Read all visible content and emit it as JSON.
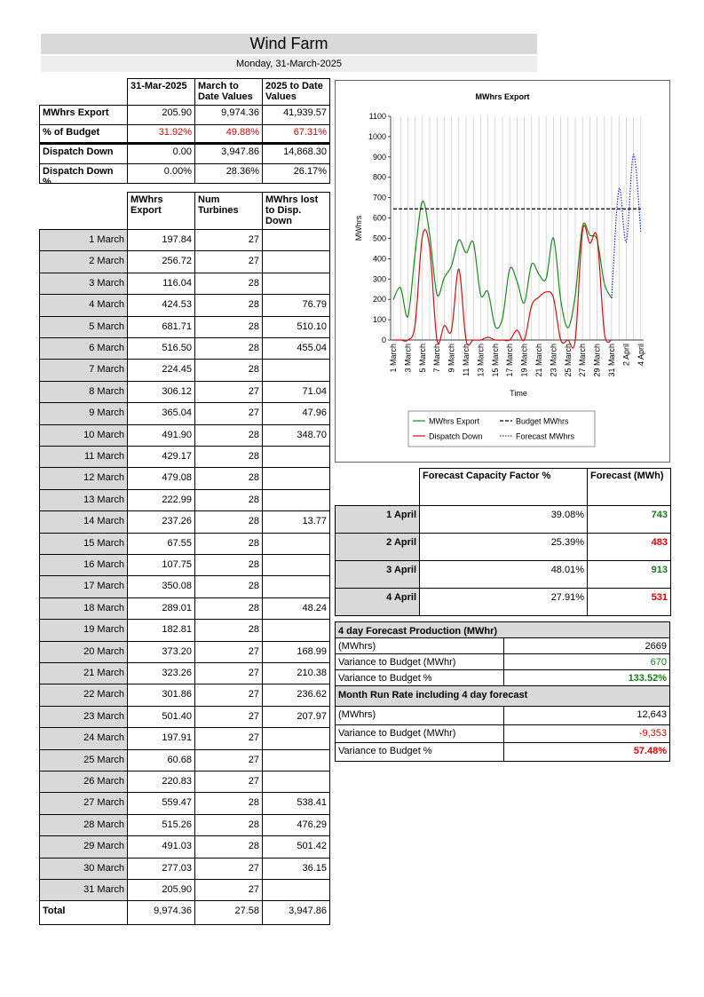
{
  "header": {
    "title": "Wind Farm",
    "date": "Monday, 31-March-2025"
  },
  "summary": {
    "columns": [
      "31-Mar-2025",
      "March to Date Values",
      "2025 to Date Values"
    ],
    "rows": [
      {
        "label": "MWhrs Export",
        "values": [
          "205.90",
          "9,974.36",
          "41,939.57"
        ],
        "color": "#000000"
      },
      {
        "label": "% of Budget",
        "values": [
          "31.92%",
          "49.88%",
          "67.31%"
        ],
        "color": "#e00000"
      },
      {
        "label": "Dispatch Down",
        "values": [
          "0.00",
          "3,947.86",
          "14,868.30"
        ],
        "color": "#000000"
      },
      {
        "label": "Dispatch Down %",
        "values": [
          "0.00%",
          "28.36%",
          "26.17%"
        ],
        "color": "#000000"
      }
    ]
  },
  "daily": {
    "columns": [
      "MWhrs Export",
      "Num Turbines",
      "MWhrs lost to Disp. Down"
    ],
    "rows": [
      [
        "1 March",
        "197.84",
        "27",
        null
      ],
      [
        "2 March",
        "256.72",
        "27",
        null
      ],
      [
        "3 March",
        "116.04",
        "28",
        null
      ],
      [
        "4 March",
        "424.53",
        "28",
        "76.79"
      ],
      [
        "5 March",
        "681.71",
        "28",
        "510.10"
      ],
      [
        "6 March",
        "516.50",
        "28",
        "455.04"
      ],
      [
        "7 March",
        "224.45",
        "28",
        null
      ],
      [
        "8 March",
        "306.12",
        "27",
        "71.04"
      ],
      [
        "9 March",
        "365.04",
        "27",
        "47.96"
      ],
      [
        "10 March",
        "491.90",
        "28",
        "348.70"
      ],
      [
        "11 March",
        "429.17",
        "28",
        null
      ],
      [
        "12 March",
        "479.08",
        "28",
        null
      ],
      [
        "13 March",
        "222.99",
        "28",
        null
      ],
      [
        "14 March",
        "237.26",
        "28",
        "13.77"
      ],
      [
        "15 March",
        "67.55",
        "28",
        null
      ],
      [
        "16 March",
        "107.75",
        "28",
        null
      ],
      [
        "17 March",
        "350.08",
        "28",
        null
      ],
      [
        "18 March",
        "289.01",
        "28",
        "48.24"
      ],
      [
        "19 March",
        "182.81",
        "28",
        null
      ],
      [
        "20 March",
        "373.20",
        "27",
        "168.99"
      ],
      [
        "21 March",
        "323.26",
        "27",
        "210.38"
      ],
      [
        "22 March",
        "301.86",
        "27",
        "236.62"
      ],
      [
        "23 March",
        "501.40",
        "27",
        "207.97"
      ],
      [
        "24 March",
        "197.91",
        "27",
        null
      ],
      [
        "25 March",
        "60.68",
        "27",
        null
      ],
      [
        "26 March",
        "220.83",
        "27",
        null
      ],
      [
        "27 March",
        "559.47",
        "28",
        "538.41"
      ],
      [
        "28 March",
        "515.26",
        "28",
        "476.29"
      ],
      [
        "29 March",
        "491.03",
        "28",
        "501.42"
      ],
      [
        "30 March",
        "277.03",
        "27",
        "36.15"
      ],
      [
        "31 March",
        "205.90",
        "27",
        null
      ]
    ],
    "total": [
      "Total",
      "9,974.36",
      "27.58",
      "3,947.86"
    ]
  },
  "chart_data": {
    "type": "line",
    "title": "MWhrs Export",
    "x_label": "Time",
    "y_label": "MWhrs",
    "categories": [
      "1 March",
      null,
      "3 March",
      null,
      "5 March",
      null,
      "7 March",
      null,
      "9 March",
      null,
      "11 March",
      null,
      "13 March",
      null,
      "15 March",
      null,
      "17 March",
      null,
      "19 March",
      null,
      "21 March",
      null,
      "23 March",
      null,
      "25 March",
      null,
      "27 March",
      null,
      "29 March",
      null,
      "31 March",
      null,
      "2 April",
      null,
      "4 April"
    ],
    "ylim": [
      0,
      1100
    ],
    "yticks": [
      0,
      100,
      200,
      300,
      400,
      500,
      600,
      700,
      800,
      900,
      1000,
      1100
    ],
    "grid": true,
    "series": [
      {
        "name": "MWhrs Export",
        "color": "#1a8a1a",
        "style": "solid",
        "values": [
          197.84,
          256.72,
          116.04,
          424.53,
          681.71,
          516.5,
          224.45,
          306.12,
          365.04,
          491.9,
          429.17,
          479.08,
          222.99,
          237.26,
          67.55,
          107.75,
          350.08,
          289.01,
          182.81,
          373.2,
          323.26,
          301.86,
          501.4,
          197.91,
          60.68,
          220.83,
          559.47,
          515.26,
          491.03,
          277.03,
          205.9,
          null,
          null,
          null,
          null
        ]
      },
      {
        "name": "Dispatch Down",
        "color": "#d01010",
        "style": "solid",
        "values": [
          0,
          0,
          0,
          76.79,
          510.1,
          455.04,
          0,
          71.04,
          47.96,
          348.7,
          0,
          0,
          0,
          13.77,
          0,
          0,
          0,
          48.24,
          0,
          168.99,
          210.38,
          236.62,
          207.97,
          0,
          0,
          0,
          538.41,
          476.29,
          501.42,
          36.15,
          0,
          null,
          null,
          null,
          null
        ]
      },
      {
        "name": "Budget MWhrs",
        "color": "#000000",
        "style": "dashed",
        "values": [
          645,
          645,
          645,
          645,
          645,
          645,
          645,
          645,
          645,
          645,
          645,
          645,
          645,
          645,
          645,
          645,
          645,
          645,
          645,
          645,
          645,
          645,
          645,
          645,
          645,
          645,
          645,
          645,
          645,
          645,
          645,
          645,
          645,
          645,
          645
        ]
      },
      {
        "name": "Forecast MWhrs",
        "color": "#1a2ad0",
        "style": "dotted",
        "values": [
          null,
          null,
          null,
          null,
          null,
          null,
          null,
          null,
          null,
          null,
          null,
          null,
          null,
          null,
          null,
          null,
          null,
          null,
          null,
          null,
          null,
          null,
          null,
          null,
          null,
          null,
          null,
          null,
          null,
          null,
          205.9,
          743,
          483,
          913,
          531
        ]
      }
    ]
  },
  "forecast": {
    "columns": [
      "Forecast Capacity Factor %",
      "Forecast (MWh)"
    ],
    "rows": [
      {
        "day": "1 April",
        "factor": "39.08%",
        "forecast": "743",
        "color": "#1a7a1a"
      },
      {
        "day": "2 April",
        "factor": "25.39%",
        "forecast": "483",
        "color": "#e00000"
      },
      {
        "day": "3 April",
        "factor": "48.01%",
        "forecast": "913",
        "color": "#1a7a1a"
      },
      {
        "day": "4 April",
        "factor": "27.91%",
        "forecast": "531",
        "color": "#e00000"
      }
    ]
  },
  "forecast_production": {
    "title": "4 day Forecast Production (MWhr)",
    "rows": [
      {
        "label": "(MWhrs)",
        "value": "2669",
        "color": "#000000"
      },
      {
        "label": "Variance to Budget (MWhr)",
        "value": "670",
        "color": "#1a7a1a"
      },
      {
        "label": "Variance to Budget %",
        "value": "133.52%",
        "color": "#1a7a1a"
      }
    ]
  },
  "run_rate": {
    "title": "Month Run Rate including 4 day forecast",
    "rows": [
      {
        "label": "(MWhrs)",
        "value": "12,643",
        "color": "#000000"
      },
      {
        "label": "Variance to Budget (MWhr)",
        "value": "-9,353",
        "color": "#e00000"
      },
      {
        "label": "Variance to Budget %",
        "value": "57.48%",
        "color": "#e00000"
      }
    ]
  }
}
